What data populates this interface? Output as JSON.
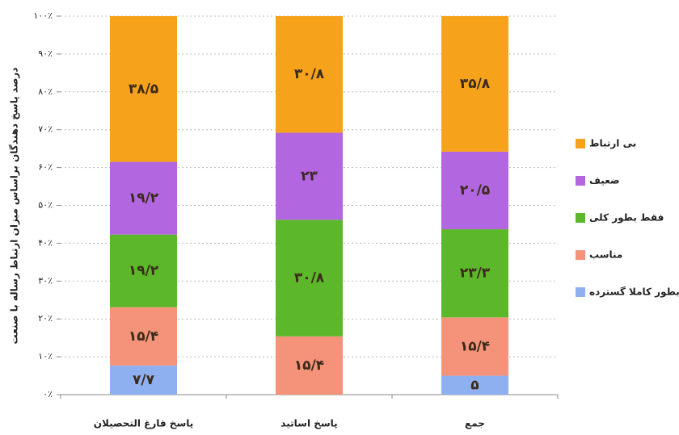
{
  "chart_data": {
    "type": "stacked_bar",
    "y_label": "درصد پاسخ دهندگان براساس میزان ارتباط رساله با صنعت",
    "categories": [
      "پاسخ فارغ التحصیلان",
      "پاسخ اساتید",
      "جمع"
    ],
    "series": [
      {
        "name": "بطور کاملا گسترده",
        "color": "#8fb0f0",
        "values": [
          7.7,
          0,
          5
        ],
        "value_labels": [
          "۷/۷",
          "۰",
          "۵"
        ]
      },
      {
        "name": "مناسب",
        "color": "#f4937a",
        "values": [
          15.4,
          15.4,
          15.4
        ],
        "value_labels": [
          "۱۵/۴",
          "۱۵/۴",
          "۱۵/۴"
        ]
      },
      {
        "name": "فقط بطور کلی",
        "color": "#5cb82a",
        "values": [
          19.2,
          30.8,
          23.3
        ],
        "value_labels": [
          "۱۹/۲",
          "۳۰/۸",
          "۲۳/۳"
        ]
      },
      {
        "name": "ضعیف",
        "color": "#b266e0",
        "values": [
          19.2,
          23,
          20.5
        ],
        "value_labels": [
          "۱۹/۲",
          "۲۳",
          "۲۰/۵"
        ]
      },
      {
        "name": "بی ارتباط",
        "color": "#f7a21b",
        "values": [
          38.5,
          30.8,
          35.8
        ],
        "value_labels": [
          "۳۸/۵",
          "۳۰/۸",
          "۳۵/۸"
        ]
      }
    ],
    "ylim": [
      0,
      100
    ],
    "yticks": [
      {
        "value": 0,
        "label": "۰٪"
      },
      {
        "value": 10,
        "label": "۱۰٪"
      },
      {
        "value": 20,
        "label": "۲۰٪"
      },
      {
        "value": 30,
        "label": "۳۰٪"
      },
      {
        "value": 40,
        "label": "۴۰٪"
      },
      {
        "value": 50,
        "label": "۵۰٪"
      },
      {
        "value": 60,
        "label": "۶۰٪"
      },
      {
        "value": 70,
        "label": "۷۰٪"
      },
      {
        "value": 80,
        "label": "۸۰٪"
      },
      {
        "value": 90,
        "label": "۹۰٪"
      },
      {
        "value": 100,
        "label": "۱۰۰٪"
      }
    ],
    "grid": true,
    "legend": "right"
  }
}
